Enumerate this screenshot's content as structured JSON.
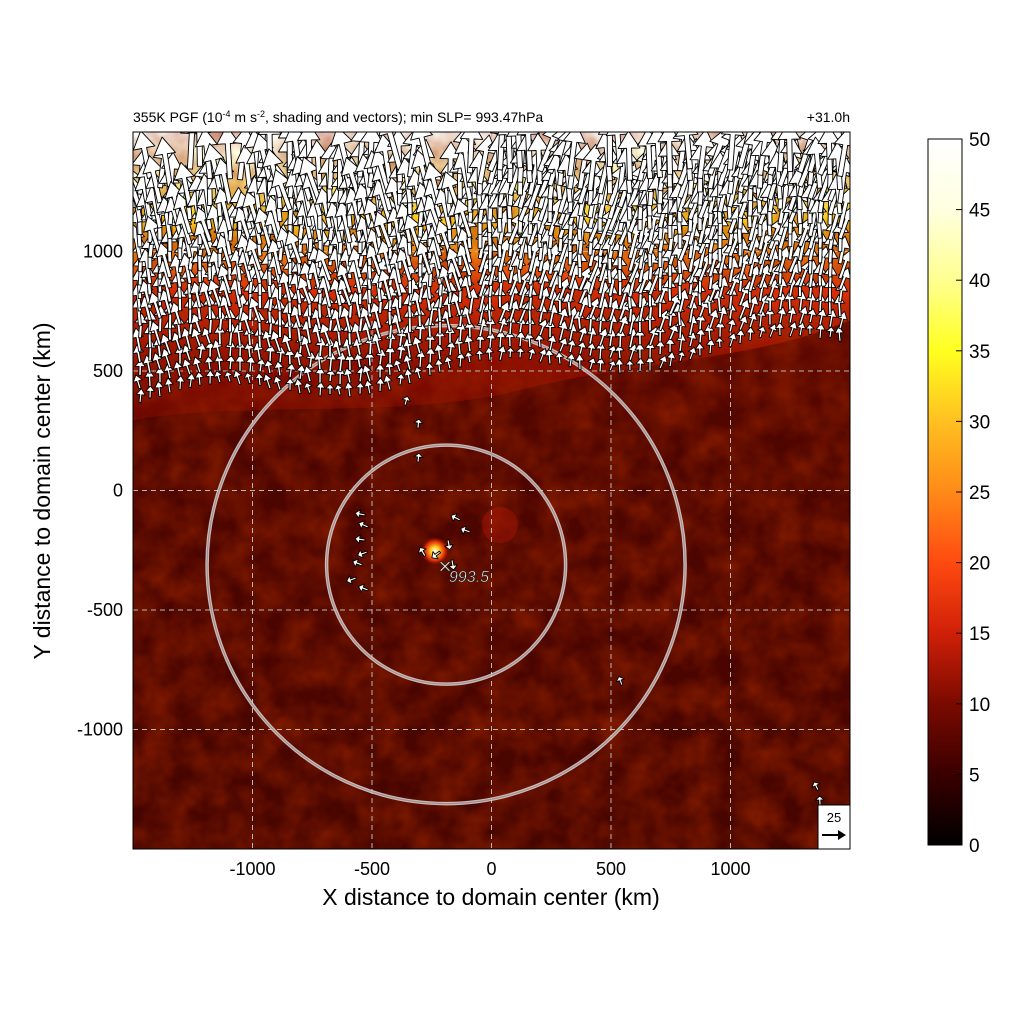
{
  "chart_data": {
    "type": "heatmap",
    "title_left_prefix": "355K PGF (10",
    "title_left_exp": "-4",
    "title_left_mid": " m s",
    "title_left_exp2": "-2",
    "title_left_suffix": ", shading and vectors); min SLP= 993.47hPa",
    "title_right": "+31.0h",
    "xlabel": "X distance to domain center (km)",
    "ylabel": "Y distance to domain center (km)",
    "xlim": [
      -1500,
      1500
    ],
    "ylim": [
      -1500,
      1500
    ],
    "x_ticks": [
      -1000,
      -500,
      0,
      500,
      1000
    ],
    "x_tick_labels": [
      "-1000",
      "-500",
      "0",
      "500",
      "1000"
    ],
    "y_ticks": [
      -1000,
      -500,
      0,
      500,
      1000
    ],
    "y_tick_labels": [
      "-1000",
      "-500",
      "0",
      "500",
      "1000"
    ],
    "grid": true,
    "colorbar": {
      "min": 0,
      "max": 50,
      "ticks": [
        0,
        5,
        10,
        15,
        20,
        25,
        30,
        35,
        40,
        45,
        50
      ],
      "tick_labels": [
        "0",
        "5",
        "10",
        "15",
        "20",
        "25",
        "30",
        "35",
        "40",
        "45",
        "50"
      ],
      "colors": [
        "#000000",
        "#3a0000",
        "#7a0a00",
        "#b51a05",
        "#e8300a",
        "#ff6a10",
        "#ffa020",
        "#ffd830",
        "#ffff70",
        "#ffffd0",
        "#ffffff"
      ]
    },
    "low_center": {
      "x": -190,
      "y": -310,
      "label": "993.5"
    },
    "rings_km": [
      {
        "x": -190,
        "y": -310,
        "r": 500
      },
      {
        "x": -190,
        "y": -310,
        "r": 1000
      }
    ],
    "reference_vector": {
      "label": "25"
    }
  }
}
